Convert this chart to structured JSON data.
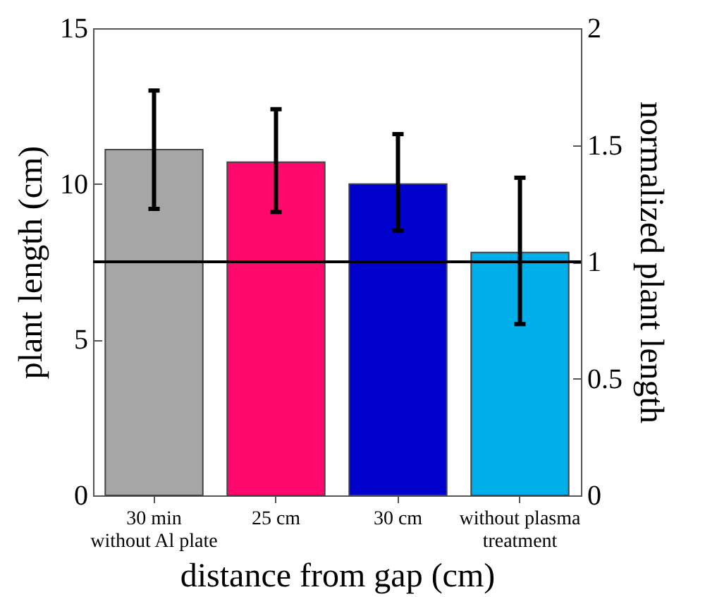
{
  "chart_data": {
    "type": "bar",
    "xlabel": "distance from gap (cm)",
    "ylabel": "plant length (cm)",
    "y2label": "normalized plant length",
    "categories": [
      "30 min\nwithout Al plate",
      "25 cm",
      "30 cm",
      "without plasma\ntreatment"
    ],
    "values": [
      11.1,
      10.7,
      10.0,
      7.8
    ],
    "colors": [
      "#a6a6a6",
      "#ff0a6c",
      "#0000cc",
      "#00aeea"
    ],
    "errors": [
      [
        9.2,
        13.0
      ],
      [
        9.1,
        12.4
      ],
      [
        8.5,
        11.6
      ],
      [
        5.5,
        10.2
      ]
    ],
    "ylim": [
      0,
      15
    ],
    "yticks": [
      0,
      5,
      10,
      15
    ],
    "y2lim": [
      0,
      2
    ],
    "y2ticks": [
      0,
      0.5,
      1,
      1.5,
      2
    ],
    "ref_lines": [
      {
        "axis": "y2",
        "value": 1,
        "color": "#000000"
      }
    ],
    "grid": false
  }
}
